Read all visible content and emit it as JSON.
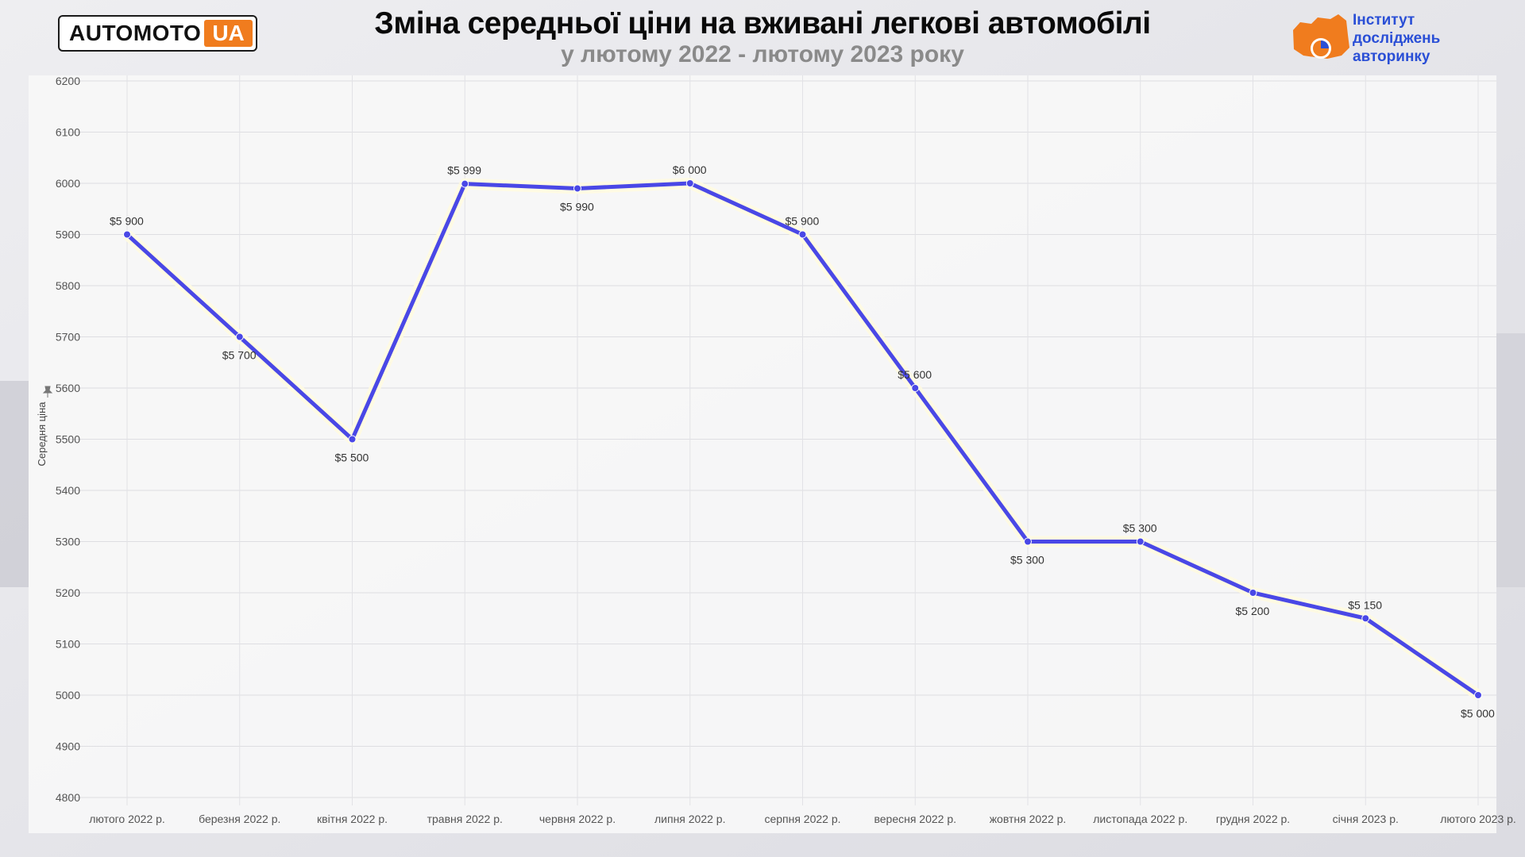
{
  "header": {
    "logo_left_main": "AUTOMOTO",
    "logo_left_accent": "UA",
    "title": "Зміна середньої ціни на вживані легкові автомобілі",
    "subtitle": "у лютому 2022 - лютому 2023 року",
    "logo_right_lines": [
      "Інститут",
      "досліджень",
      "авторинку"
    ],
    "accent_color": "#f07c1e",
    "brand_blue": "#2a4fd6"
  },
  "chart_data": {
    "type": "line",
    "title": "Зміна середньої ціни на вживані легкові автомобілі",
    "subtitle": "у лютому 2022 - лютому 2023 року",
    "xlabel": "",
    "ylabel": "Середня ціна",
    "ylim": [
      4800,
      6200
    ],
    "yticks": [
      6200,
      6100,
      6000,
      5900,
      5800,
      5700,
      5600,
      5500,
      5400,
      5300,
      5200,
      5100,
      5000,
      4900,
      4800
    ],
    "grid": true,
    "line_color": "#4a48e6",
    "categories": [
      "лютого 2022 р.",
      "березня 2022 р.",
      "квітня 2022 р.",
      "травня 2022 р.",
      "червня 2022 р.",
      "липня 2022 р.",
      "серпня 2022 р.",
      "вересня 2022 р.",
      "жовтня 2022 р.",
      "листопада 2022 р.",
      "грудня 2022 р.",
      "січня 2023 р.",
      "лютого 2023 р."
    ],
    "series": [
      {
        "values": [
          5900,
          5700,
          5500,
          5999,
          5990,
          6000,
          5900,
          5600,
          5300,
          5300,
          5200,
          5150,
          5000
        ],
        "labels": [
          "$5 900",
          "$5 700",
          "$5 500",
          "$5 999",
          "$5 990",
          "$6 000",
          "$5 900",
          "$5 600",
          "$5 300",
          "$5 300",
          "$5 200",
          "$5 150",
          "$5 000"
        ],
        "label_position": [
          "above",
          "below",
          "below",
          "above",
          "below",
          "above",
          "above",
          "above",
          "below",
          "above",
          "below",
          "above",
          "below"
        ]
      }
    ]
  }
}
